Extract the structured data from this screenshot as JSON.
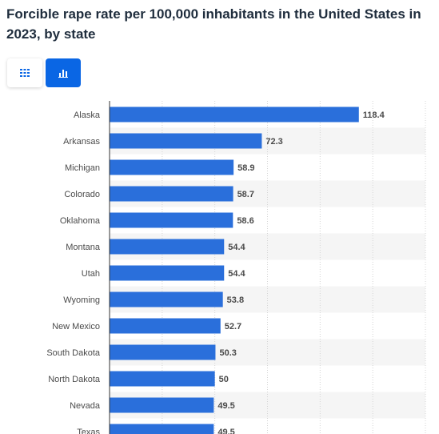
{
  "title": "Forcible rape rate per 100,000 inhabitants in the United States in 2023, by state",
  "view_toggle": {
    "table_icon": "table-grid-icon",
    "bar_icon": "bar-chart-icon",
    "active": "bar"
  },
  "colors": {
    "bar": "#2a6fdb",
    "active_toggle": "#0a66e4",
    "title": "#1f2d3d"
  },
  "chart_data": {
    "type": "bar",
    "orientation": "horizontal",
    "categories": [
      "Alaska",
      "Arkansas",
      "Michigan",
      "Colorado",
      "Oklahoma",
      "Montana",
      "Utah",
      "Wyoming",
      "New Mexico",
      "South Dakota",
      "North Dakota",
      "Nevada",
      "Texas"
    ],
    "values": [
      118.4,
      72.3,
      58.9,
      58.7,
      58.6,
      54.4,
      54.4,
      53.8,
      52.7,
      50.3,
      50,
      49.5,
      49.5
    ],
    "value_labels": [
      "118.4",
      "72.3",
      "58.9",
      "58.7",
      "58.6",
      "54.4",
      "54.4",
      "53.8",
      "52.7",
      "50.3",
      "50",
      "49.5",
      "49.5"
    ],
    "xlim": [
      0,
      150
    ],
    "grid": true,
    "xlabel": "",
    "ylabel": ""
  }
}
